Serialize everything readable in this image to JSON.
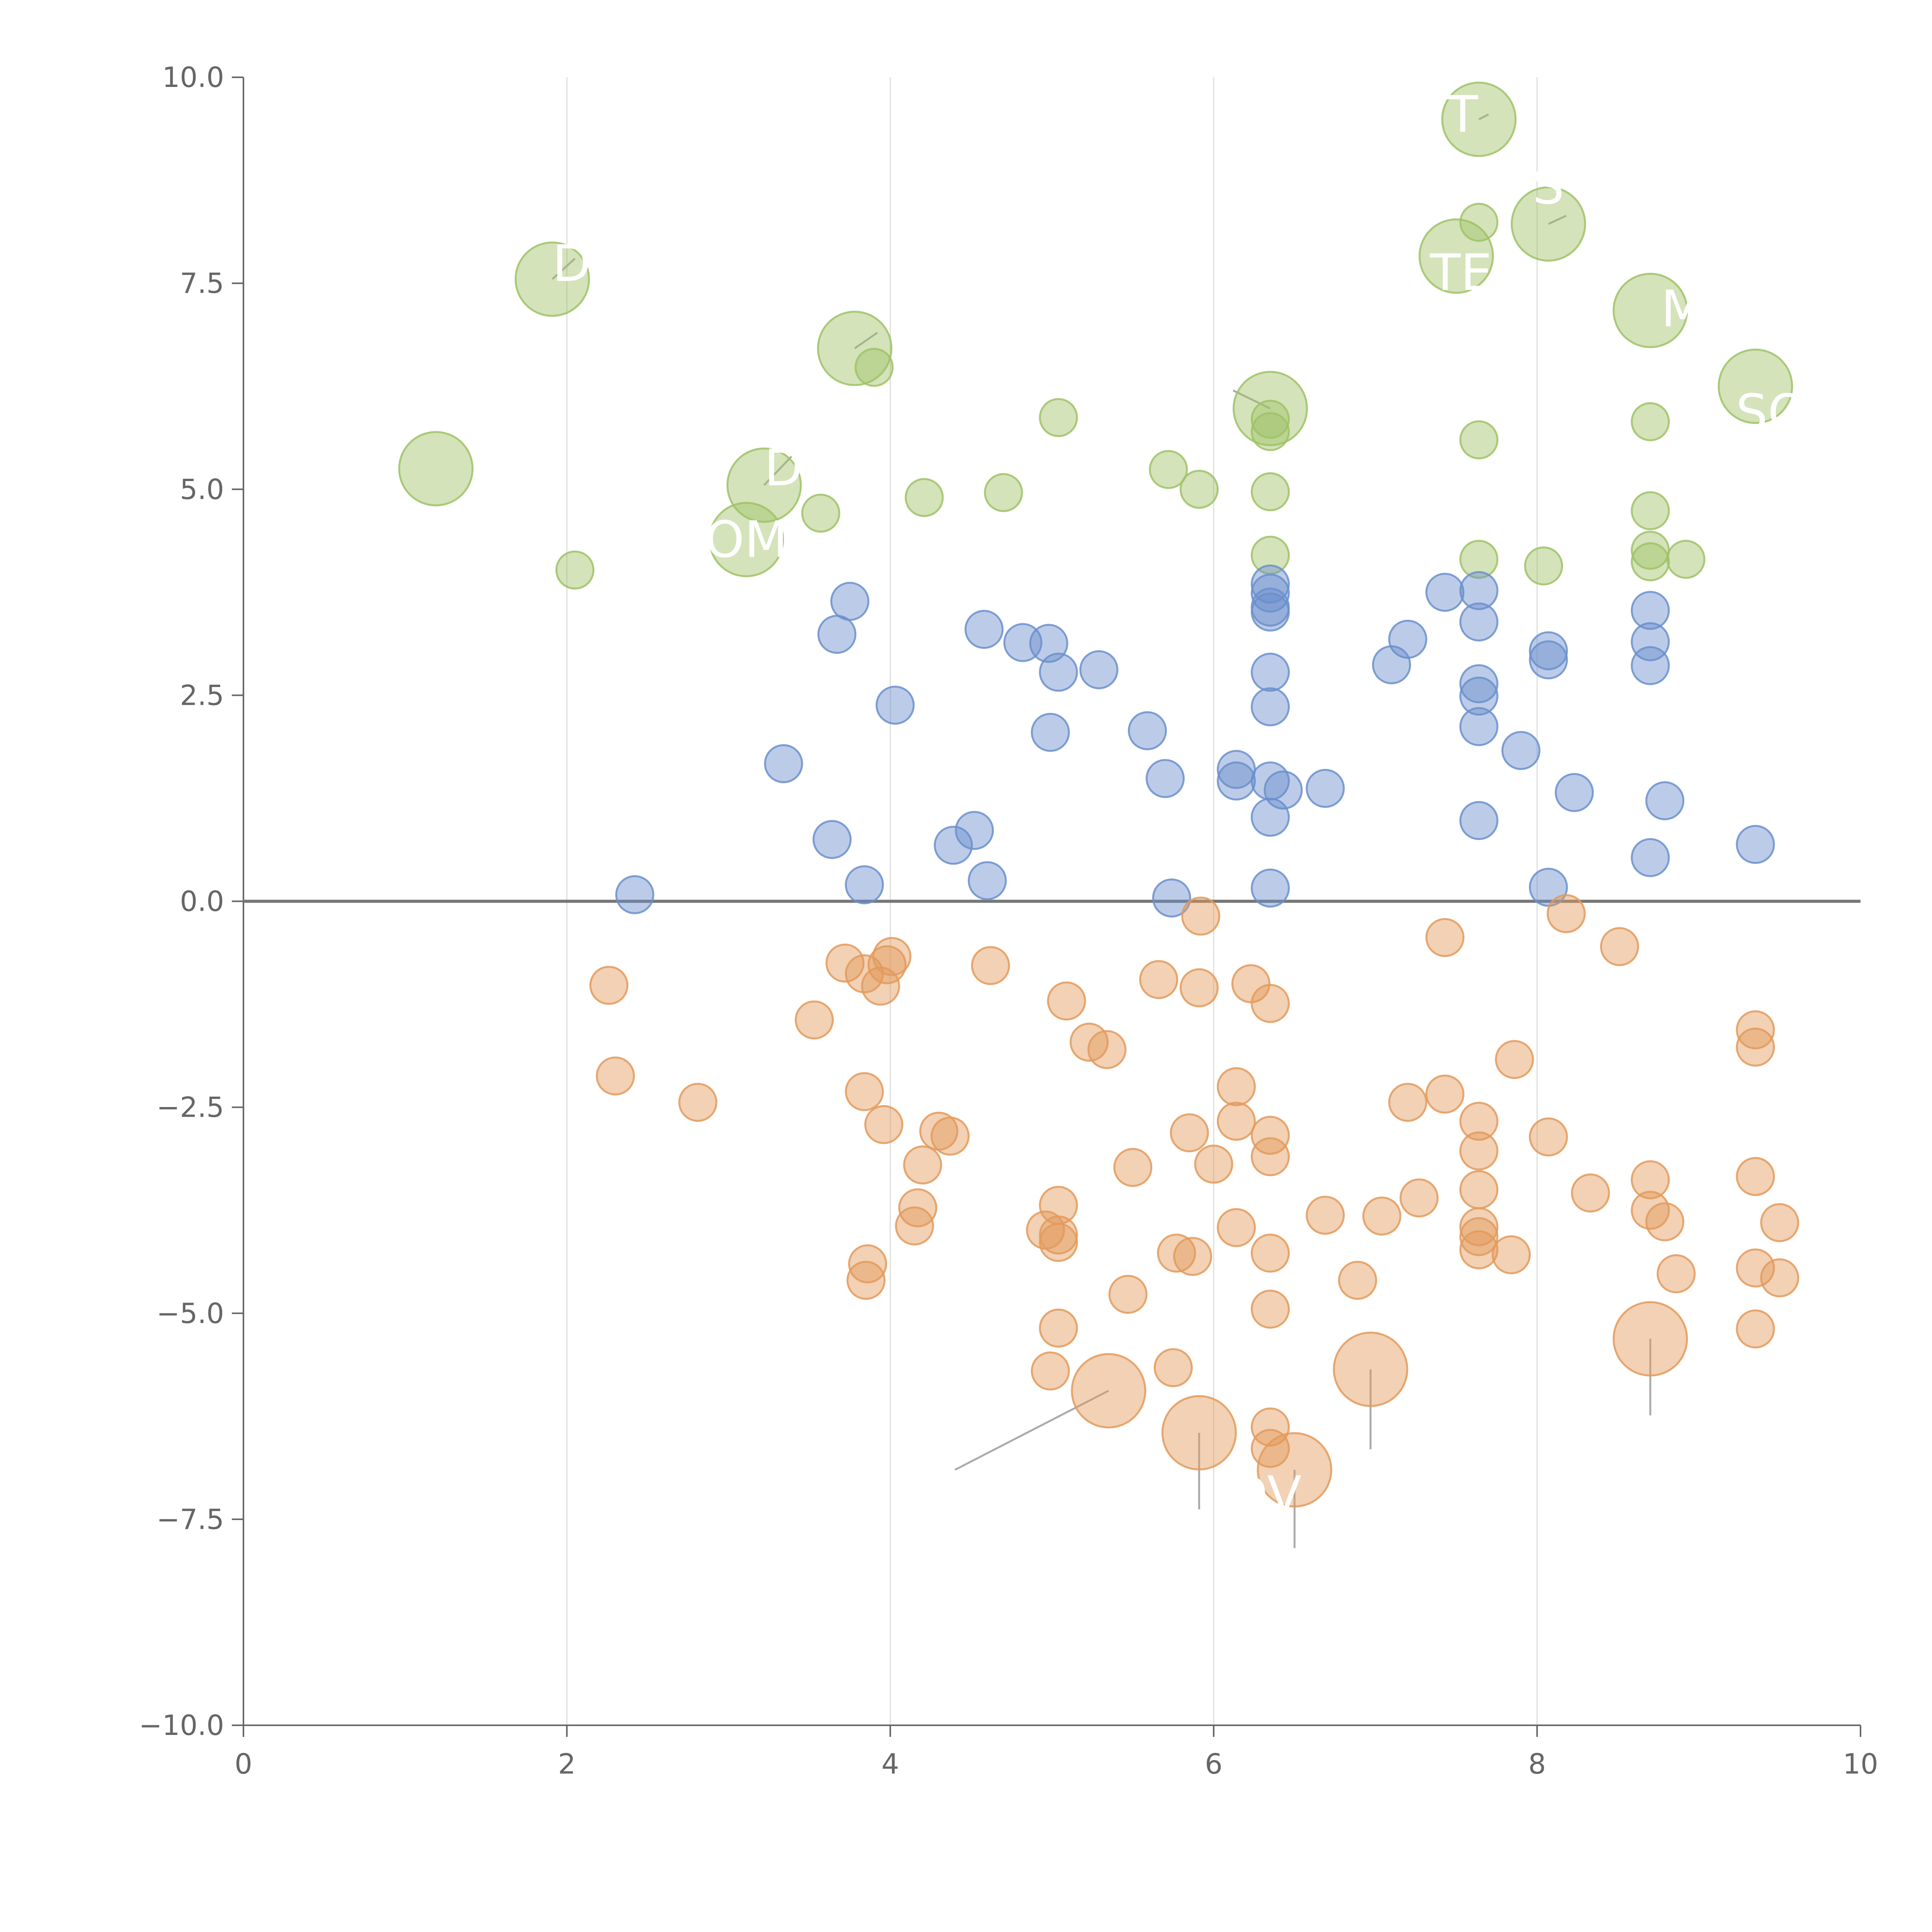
{
  "chart_data": {
    "type": "scatter",
    "subtype": "bubble",
    "title": "",
    "xlabel": "",
    "ylabel": "",
    "xlim": [
      0,
      10
    ],
    "ylim": [
      -10,
      10
    ],
    "x_ticks": [
      "0",
      "2",
      "4",
      "6",
      "8",
      "10"
    ],
    "y_ticks": [
      "10.0",
      "7.5",
      "5.0",
      "2.5",
      "0.0",
      "−2.5",
      "−5.0",
      "−7.5",
      "−10.0"
    ],
    "x_tick_values": [
      0,
      2,
      4,
      6,
      8,
      10
    ],
    "y_tick_values": [
      10,
      7.5,
      5,
      2.5,
      0,
      -2.5,
      -5,
      -7.5,
      -10
    ],
    "vertical_gridlines": [
      2,
      4,
      6,
      8
    ],
    "baseline": 0,
    "colors": {
      "green": "#9fc266",
      "blue": "#6b8fcc",
      "orange": "#e39a5a",
      "axis": "#666666",
      "grid": "#dddddd",
      "baseline": "#777777",
      "label": "#ffffff"
    },
    "series": [
      {
        "name": "green",
        "color": "#9fc266",
        "points": [
          [
            1.19,
            5.25,
            2
          ],
          [
            1.91,
            7.55,
            2
          ],
          [
            2.05,
            4.02,
            1
          ],
          [
            3.11,
            4.39,
            2
          ],
          [
            3.22,
            5.05,
            2
          ],
          [
            3.57,
            4.71,
            1
          ],
          [
            3.78,
            6.71,
            2
          ],
          [
            3.9,
            6.48,
            1
          ],
          [
            4.21,
            4.9,
            1
          ],
          [
            4.7,
            4.96,
            1
          ],
          [
            5.04,
            5.87,
            1
          ],
          [
            5.72,
            5.24,
            1
          ],
          [
            5.91,
            5.0,
            1
          ],
          [
            6.35,
            5.98,
            2
          ],
          [
            6.35,
            5.85,
            1
          ],
          [
            6.35,
            5.7,
            1
          ],
          [
            6.35,
            4.97,
            1
          ],
          [
            6.35,
            4.2,
            1
          ],
          [
            7.5,
            7.83,
            2
          ],
          [
            7.64,
            9.49,
            2
          ],
          [
            7.64,
            8.24,
            1
          ],
          [
            7.64,
            5.6,
            1
          ],
          [
            7.64,
            4.15,
            1
          ],
          [
            8.04,
            4.07,
            1
          ],
          [
            8.07,
            8.22,
            2
          ],
          [
            8.7,
            7.17,
            2
          ],
          [
            8.7,
            5.82,
            1
          ],
          [
            8.7,
            4.74,
            1
          ],
          [
            8.7,
            4.26,
            1
          ],
          [
            8.7,
            4.12,
            1
          ],
          [
            8.92,
            4.15,
            1
          ],
          [
            9.35,
            6.25,
            2
          ]
        ]
      },
      {
        "name": "blue",
        "color": "#6b8fcc",
        "points": [
          [
            2.42,
            0.08,
            1
          ],
          [
            3.34,
            1.67,
            1
          ],
          [
            3.64,
            0.75,
            1
          ],
          [
            3.67,
            3.24,
            1
          ],
          [
            3.75,
            3.64,
            1
          ],
          [
            3.84,
            0.2,
            1
          ],
          [
            4.03,
            2.38,
            1
          ],
          [
            4.39,
            0.68,
            1
          ],
          [
            4.52,
            0.86,
            1
          ],
          [
            4.58,
            3.3,
            1
          ],
          [
            4.6,
            0.25,
            1
          ],
          [
            4.82,
            3.14,
            1
          ],
          [
            4.98,
            3.13,
            1
          ],
          [
            5.04,
            2.78,
            1
          ],
          [
            4.99,
            2.05,
            1
          ],
          [
            5.29,
            2.81,
            1
          ],
          [
            5.59,
            2.07,
            1
          ],
          [
            5.7,
            1.49,
            1
          ],
          [
            5.74,
            0.04,
            1
          ],
          [
            6.14,
            1.6,
            1
          ],
          [
            6.14,
            1.46,
            1
          ],
          [
            6.35,
            3.85,
            1
          ],
          [
            6.35,
            3.74,
            1
          ],
          [
            6.35,
            3.57,
            1
          ],
          [
            6.35,
            3.51,
            1
          ],
          [
            6.35,
            2.78,
            1
          ],
          [
            6.35,
            2.36,
            1
          ],
          [
            6.35,
            1.46,
            1
          ],
          [
            6.43,
            1.35,
            1
          ],
          [
            6.35,
            1.02,
            1
          ],
          [
            6.35,
            0.16,
            1
          ],
          [
            6.69,
            1.37,
            1
          ],
          [
            7.1,
            2.87,
            1
          ],
          [
            7.2,
            3.18,
            1
          ],
          [
            7.43,
            3.75,
            1
          ],
          [
            7.64,
            3.77,
            1
          ],
          [
            7.64,
            3.39,
            1
          ],
          [
            7.64,
            2.64,
            1
          ],
          [
            7.64,
            2.49,
            1
          ],
          [
            7.64,
            2.12,
            1
          ],
          [
            7.64,
            0.98,
            1
          ],
          [
            7.9,
            1.83,
            1
          ],
          [
            8.07,
            3.04,
            1
          ],
          [
            8.07,
            2.93,
            1
          ],
          [
            8.07,
            0.17,
            1
          ],
          [
            8.23,
            1.32,
            1
          ],
          [
            8.7,
            3.53,
            1
          ],
          [
            8.7,
            3.15,
            1
          ],
          [
            8.7,
            2.86,
            1
          ],
          [
            8.79,
            1.22,
            1
          ],
          [
            8.7,
            0.53,
            1
          ],
          [
            9.35,
            0.69,
            1
          ]
        ]
      },
      {
        "name": "orange",
        "color": "#e39a5a",
        "points": [
          [
            2.26,
            -1.02,
            1
          ],
          [
            2.3,
            -2.12,
            1
          ],
          [
            2.81,
            -2.44,
            1
          ],
          [
            3.53,
            -1.44,
            1
          ],
          [
            3.72,
            -0.75,
            1
          ],
          [
            3.84,
            -0.88,
            1
          ],
          [
            3.94,
            -1.03,
            1
          ],
          [
            3.98,
            -0.77,
            1
          ],
          [
            4.01,
            -0.67,
            1
          ],
          [
            3.84,
            -2.31,
            1
          ],
          [
            3.96,
            -2.71,
            1
          ],
          [
            4.3,
            -2.79,
            1
          ],
          [
            4.37,
            -2.85,
            1
          ],
          [
            4.2,
            -3.2,
            1
          ],
          [
            4.17,
            -3.72,
            1
          ],
          [
            4.15,
            -3.94,
            1
          ],
          [
            3.86,
            -4.4,
            1
          ],
          [
            3.85,
            -4.6,
            1
          ],
          [
            4.62,
            -0.78,
            1
          ],
          [
            5.09,
            -1.21,
            1
          ],
          [
            5.23,
            -1.71,
            1
          ],
          [
            5.34,
            -1.8,
            1
          ],
          [
            5.04,
            -3.69,
            1
          ],
          [
            4.96,
            -3.99,
            1
          ],
          [
            5.04,
            -4.05,
            1
          ],
          [
            5.04,
            -4.14,
            1
          ],
          [
            5.04,
            -5.18,
            1
          ],
          [
            4.99,
            -5.7,
            1
          ],
          [
            5.35,
            -5.94,
            2
          ],
          [
            5.5,
            -3.23,
            1
          ],
          [
            5.47,
            -4.77,
            1
          ],
          [
            5.66,
            -0.95,
            1
          ],
          [
            5.91,
            -1.05,
            1
          ],
          [
            5.92,
            -0.18,
            1
          ],
          [
            5.85,
            -2.81,
            1
          ],
          [
            5.77,
            -4.27,
            1
          ],
          [
            5.87,
            -4.31,
            1
          ],
          [
            5.75,
            -5.66,
            1
          ],
          [
            5.91,
            -6.45,
            2
          ],
          [
            6.0,
            -3.19,
            1
          ],
          [
            6.14,
            -2.25,
            1
          ],
          [
            6.14,
            -2.67,
            1
          ],
          [
            6.14,
            -3.96,
            1
          ],
          [
            6.23,
            -1.0,
            1
          ],
          [
            6.35,
            -1.24,
            1
          ],
          [
            6.35,
            -2.84,
            1
          ],
          [
            6.35,
            -3.1,
            1
          ],
          [
            6.35,
            -4.27,
            1
          ],
          [
            6.35,
            -4.95,
            1
          ],
          [
            6.35,
            -6.38,
            1
          ],
          [
            6.35,
            -6.64,
            1
          ],
          [
            6.5,
            -6.9,
            2
          ],
          [
            6.69,
            -3.81,
            1
          ],
          [
            6.89,
            -4.6,
            1
          ],
          [
            6.97,
            -5.68,
            2
          ],
          [
            7.04,
            -3.82,
            1
          ],
          [
            7.2,
            -2.44,
            1
          ],
          [
            7.27,
            -3.6,
            1
          ],
          [
            7.43,
            -0.44,
            1
          ],
          [
            7.43,
            -2.34,
            1
          ],
          [
            7.64,
            -2.67,
            1
          ],
          [
            7.64,
            -3.03,
            1
          ],
          [
            7.64,
            -3.5,
            1
          ],
          [
            7.64,
            -3.95,
            1
          ],
          [
            7.64,
            -4.07,
            1
          ],
          [
            7.64,
            -4.23,
            1
          ],
          [
            7.84,
            -4.29,
            1
          ],
          [
            7.86,
            -1.92,
            1
          ],
          [
            8.07,
            -2.86,
            1
          ],
          [
            8.18,
            -0.15,
            1
          ],
          [
            8.33,
            -3.54,
            1
          ],
          [
            8.51,
            -0.55,
            1
          ],
          [
            8.7,
            -3.38,
            1
          ],
          [
            8.7,
            -3.75,
            1
          ],
          [
            8.79,
            -3.89,
            1
          ],
          [
            8.86,
            -4.52,
            1
          ],
          [
            8.7,
            -5.31,
            2
          ],
          [
            9.35,
            -1.56,
            1
          ],
          [
            9.35,
            -1.77,
            1
          ],
          [
            9.35,
            -3.34,
            1
          ],
          [
            9.35,
            -4.45,
            1
          ],
          [
            9.35,
            -5.19,
            1
          ],
          [
            9.5,
            -3.9,
            1
          ],
          [
            9.5,
            -4.57,
            1
          ]
        ]
      }
    ],
    "labels": [
      {
        "text": "T",
        "x": 7.54,
        "y": 9.55
      },
      {
        "text": "S",
        "x": 8.07,
        "y": 8.68
      },
      {
        "text": "TE",
        "x": 7.53,
        "y": 7.63
      },
      {
        "text": "M",
        "x": 8.9,
        "y": 7.19
      },
      {
        "text": "SO",
        "x": 9.45,
        "y": 5.93
      },
      {
        "text": "D",
        "x": 2.03,
        "y": 7.74
      },
      {
        "text": "D",
        "x": 3.34,
        "y": 5.26
      },
      {
        "text": "OM",
        "x": 3.11,
        "y": 4.39
      },
      {
        "text": "DV",
        "x": 6.32,
        "y": -7.2
      }
    ],
    "leader_lines": [
      [
        1.19,
        5.25,
        1.19,
        5.25
      ],
      [
        1.91,
        7.55,
        2.05,
        7.8
      ],
      [
        3.22,
        5.05,
        3.39,
        5.4
      ],
      [
        3.78,
        6.71,
        3.92,
        6.9
      ],
      [
        6.35,
        5.98,
        6.12,
        6.2
      ],
      [
        7.64,
        9.49,
        7.7,
        9.55
      ],
      [
        8.07,
        8.22,
        8.18,
        8.32
      ],
      [
        5.35,
        -5.94,
        4.4,
        -6.9
      ],
      [
        5.91,
        -6.45,
        5.91,
        -7.38
      ],
      [
        6.5,
        -6.9,
        6.5,
        -7.85
      ],
      [
        6.97,
        -5.68,
        6.97,
        -6.65
      ],
      [
        8.7,
        -5.31,
        8.7,
        -6.24
      ]
    ]
  }
}
